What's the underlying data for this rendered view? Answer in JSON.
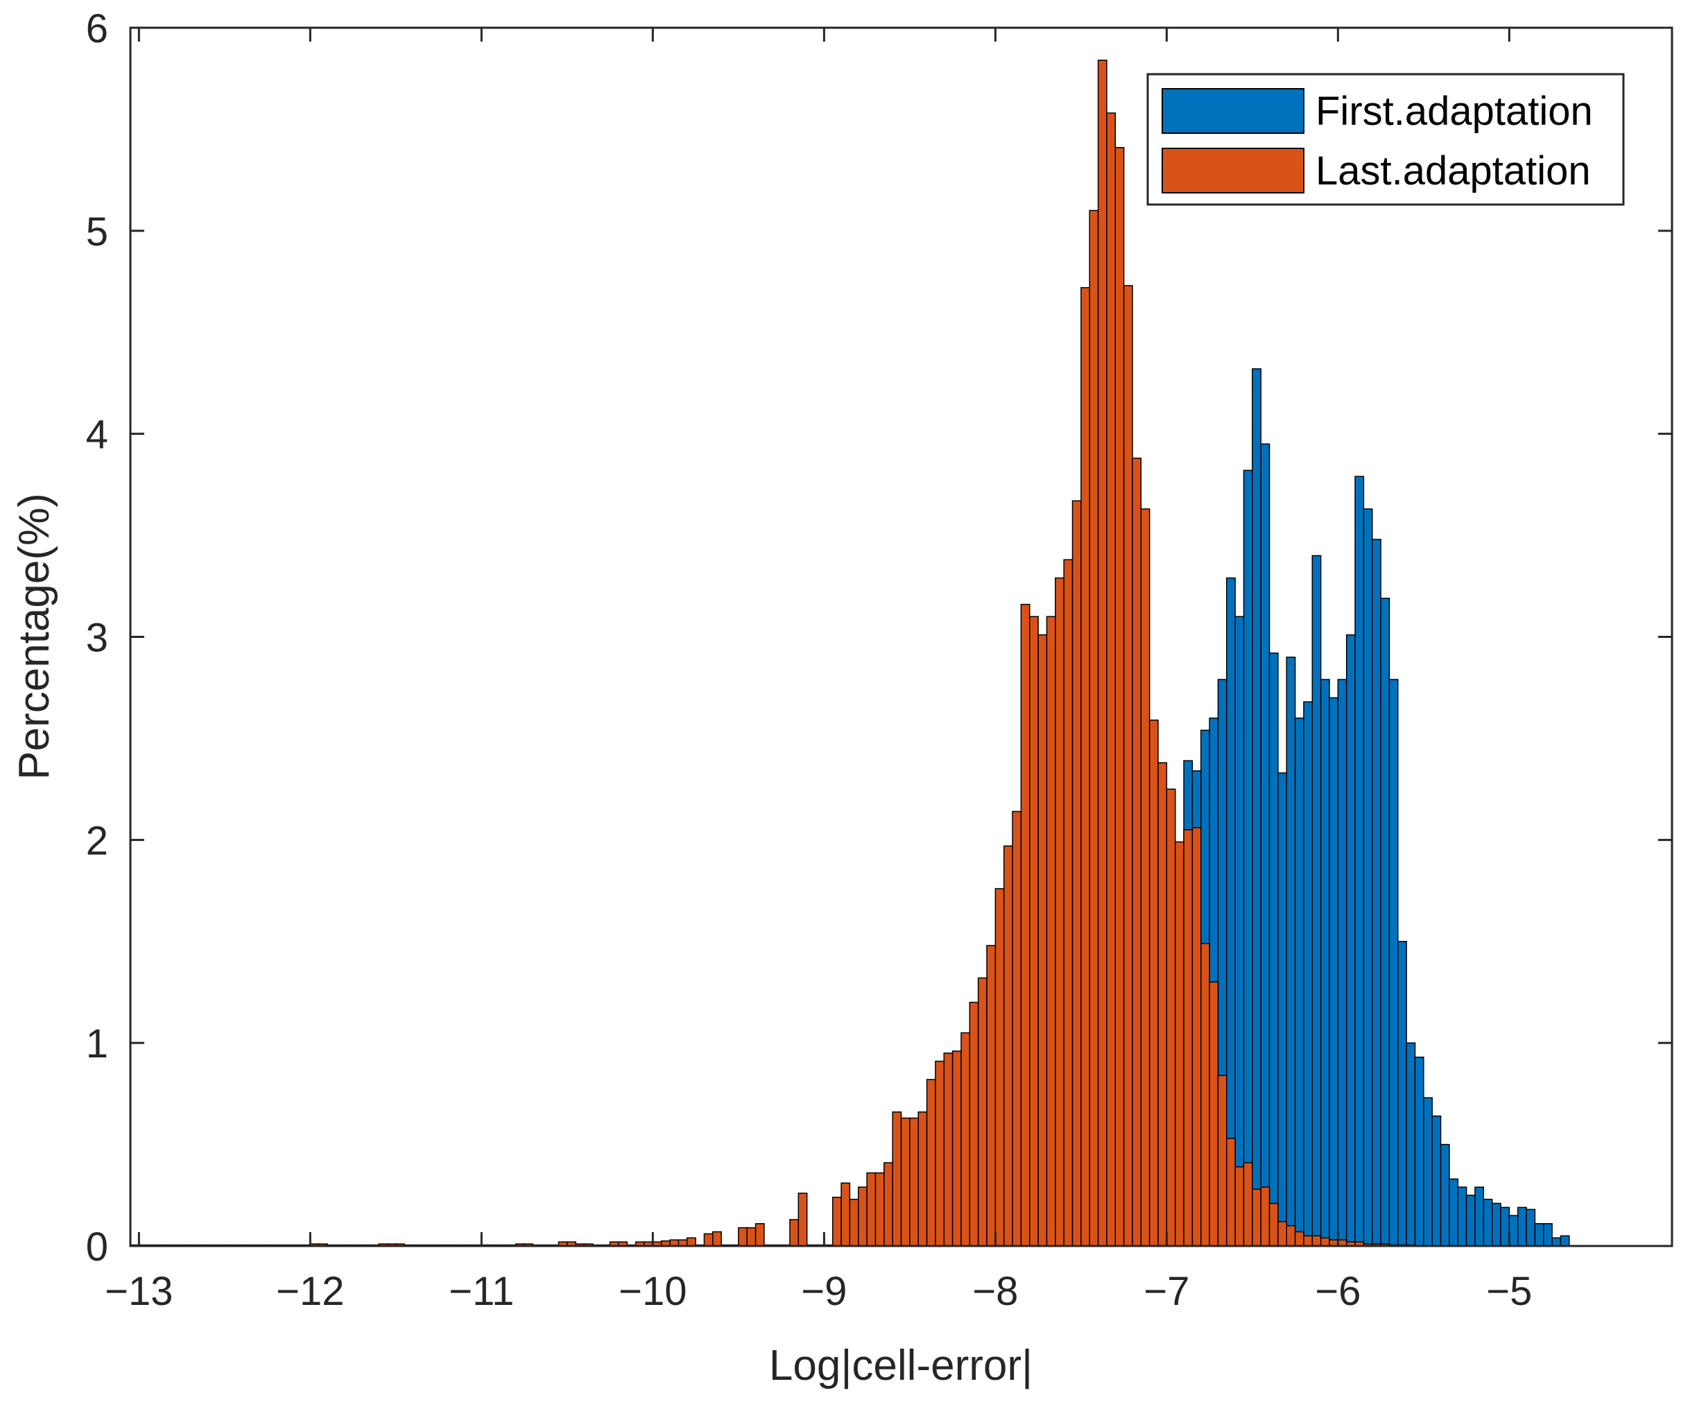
{
  "chart_data": {
    "type": "bar",
    "title": "",
    "xlabel": "Log|cell-error|",
    "ylabel": "Percentage(%)",
    "xlim": [
      -13.05,
      -4.05
    ],
    "ylim": [
      0,
      6
    ],
    "bin_width": 0.05,
    "xticks": [
      -13,
      -12,
      -11,
      -10,
      -9,
      -8,
      -7,
      -6,
      -5
    ],
    "xtick_labels": [
      "−13",
      "−12",
      "−11",
      "−10",
      "−9",
      "−8",
      "−7",
      "−6",
      "−5"
    ],
    "yticks": [
      0,
      1,
      2,
      3,
      4,
      5,
      6
    ],
    "ytick_labels": [
      "0",
      "1",
      "2",
      "3",
      "4",
      "5",
      "6"
    ],
    "grid": false,
    "legend_position": "top-right",
    "series": [
      {
        "name": "First.adaptation",
        "color": "#0072BD",
        "x_start": -8.2,
        "values": [
          0.05,
          0.08,
          0.1,
          0.12,
          0.15,
          0.2,
          0.25,
          0.3,
          0.35,
          0.38,
          0.45,
          0.5,
          0.6,
          0.7,
          0.8,
          0.9,
          1.0,
          1.1,
          1.25,
          1.2,
          1.22,
          1.05,
          1.22,
          1.3,
          1.31,
          1.58,
          2.39,
          2.34,
          2.54,
          2.6,
          2.79,
          3.29,
          3.1,
          3.82,
          4.32,
          3.95,
          2.92,
          2.33,
          2.9,
          2.6,
          2.68,
          3.4,
          2.79,
          2.7,
          2.79,
          3.01,
          3.79,
          3.63,
          3.48,
          3.19,
          2.79,
          1.5,
          1.0,
          0.93,
          0.73,
          0.64,
          0.5,
          0.33,
          0.29,
          0.25,
          0.29,
          0.23,
          0.21,
          0.19,
          0.15,
          0.19,
          0.18,
          0.11,
          0.11,
          0.04,
          0.05
        ]
      },
      {
        "name": "Last.adaptation",
        "color": "#D95319",
        "x_start": -13.05,
        "values": [
          0.005,
          0.005,
          0.005,
          0.005,
          0.005,
          0.005,
          0.005,
          0.005,
          0.005,
          0.005,
          0.005,
          0.005,
          0.005,
          0.005,
          0.005,
          0.005,
          0.005,
          0.005,
          0.005,
          0.005,
          0.005,
          0.01,
          0.01,
          0.005,
          0.005,
          0.005,
          0.005,
          0.005,
          0.005,
          0.01,
          0.01,
          0.01,
          0.005,
          0.005,
          0.005,
          0.005,
          0.005,
          0.005,
          0.005,
          0.005,
          0.005,
          0.005,
          0.005,
          0.005,
          0.005,
          0.01,
          0.01,
          0.005,
          0.005,
          0.005,
          0.02,
          0.02,
          0.01,
          0.01,
          0.005,
          0.005,
          0.02,
          0.02,
          0.005,
          0.02,
          0.02,
          0.02,
          0.025,
          0.03,
          0.03,
          0.04,
          0.005,
          0.06,
          0.07,
          0.005,
          0.005,
          0.09,
          0.09,
          0.11,
          0.005,
          0.005,
          0.005,
          0.13,
          0.26,
          0.005,
          0.005,
          0.005,
          0.24,
          0.31,
          0.23,
          0.29,
          0.36,
          0.36,
          0.41,
          0.66,
          0.63,
          0.63,
          0.66,
          0.82,
          0.91,
          0.95,
          0.96,
          1.05,
          1.2,
          1.32,
          1.48,
          1.76,
          1.97,
          2.14,
          3.16,
          3.1,
          3.01,
          3.1,
          3.29,
          3.38,
          3.67,
          4.72,
          5.1,
          5.84,
          5.58,
          5.41,
          4.73,
          3.88,
          3.63,
          2.59,
          2.38,
          2.25,
          1.99,
          2.05,
          2.06,
          1.49,
          1.3,
          0.84,
          0.53,
          0.39,
          0.41,
          0.28,
          0.29,
          0.21,
          0.12,
          0.1,
          0.07,
          0.05,
          0.05,
          0.04,
          0.03,
          0.03,
          0.02,
          0.02,
          0.01,
          0.01,
          0.01,
          0.005,
          0.005,
          0.005
        ]
      }
    ]
  }
}
